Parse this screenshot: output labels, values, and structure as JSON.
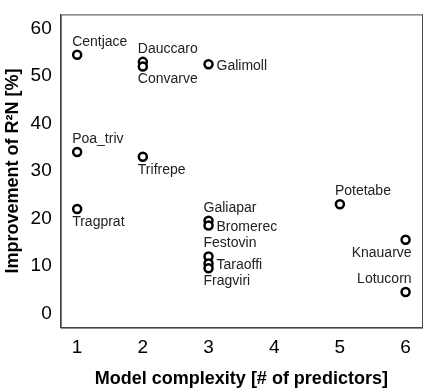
{
  "chart_data": {
    "type": "scatter",
    "x_label": "Model complexity [# of predictors]",
    "y_label": "Improvement of R²N [%]",
    "x": [
      1,
      2,
      2,
      3,
      1,
      2,
      1,
      3,
      3,
      3,
      3,
      3,
      5,
      6,
      6
    ],
    "values": [
      54.5,
      53,
      52,
      52.5,
      34,
      33,
      22,
      19.5,
      18.5,
      12,
      10.5,
      9.5,
      23,
      15.5,
      4.5
    ],
    "point_labels": [
      "Centjace",
      "Dauccaro",
      "Convarve",
      "Galimoll",
      "Poa_triv",
      "Trifrepe",
      "Tragprat",
      "Galiapar",
      "Bromerec",
      "Festovin",
      "Taraoffi",
      "Fragviri",
      "Potetabe",
      "Knauarve",
      "Lotucorn"
    ],
    "xlim": [
      0.75,
      6.25
    ],
    "xticks": [
      1,
      2,
      3,
      4,
      5,
      6
    ],
    "ylim": [
      -3,
      63
    ],
    "yticks": [
      0,
      10,
      20,
      30,
      40,
      50,
      60
    ],
    "color": "#000000",
    "marker": "circle",
    "grid": false
  }
}
